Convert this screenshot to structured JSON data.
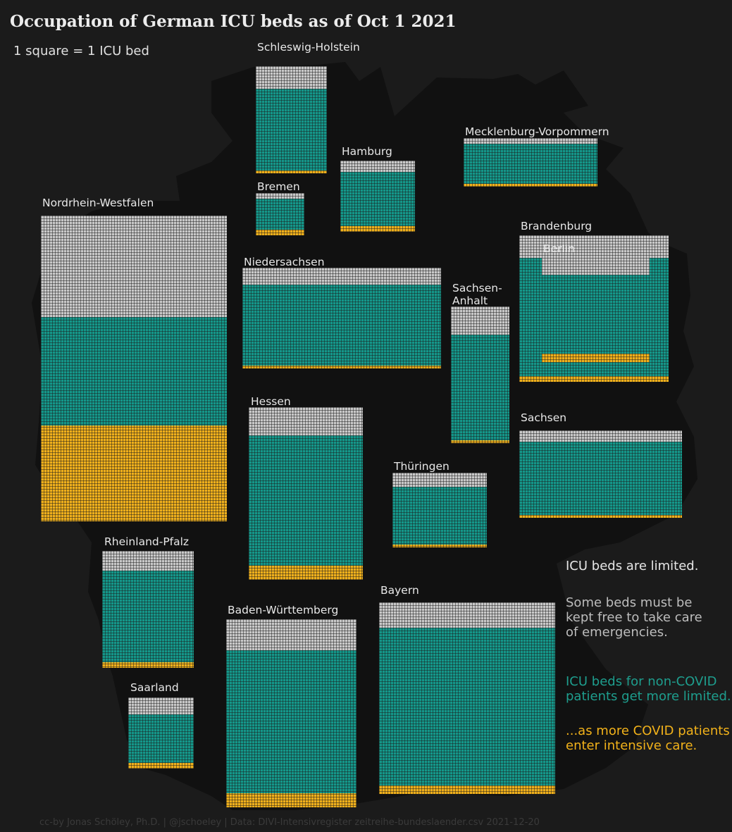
{
  "title": "Occupation of German ICU beds as of Oct  1 2021",
  "subtitle": "1 square = 1 ICU bed",
  "caption": "cc-by Jonas Schöley, Ph.D. | @jschoeley | Data: DIVI-Intensivregister zeitreihe-bundeslaender.csv 2021-12-20",
  "notes": {
    "limited": "ICU beds are limited.",
    "reserve": [
      "Some beds must be",
      "kept free to take care",
      "of emergencies."
    ],
    "noncovid": [
      "ICU beds for non-COVID",
      "patients get more limited.."
    ],
    "covid": [
      "...as more COVID patients",
      "enter intensive care."
    ]
  },
  "colors": {
    "background": "#1b1b1b",
    "map": "#111111",
    "free": "#c9c9c9",
    "non_covid": "#14978a",
    "covid": "#f0b01c",
    "cell_border": "#1b1b1b"
  },
  "chart_data": {
    "type": "waffle",
    "unit": "1 square = 1 ICU bed",
    "categories": [
      "free",
      "non-COVID",
      "COVID"
    ],
    "states": [
      {
        "name": "Schleswig-Holstein",
        "free": 270,
        "non_covid": 976,
        "covid": 40
      },
      {
        "name": "Hamburg",
        "free": 190,
        "non_covid": 838,
        "covid": 65
      },
      {
        "name": "Bremen",
        "free": 45,
        "non_covid": 191,
        "covid": 38
      },
      {
        "name": "Mecklenburg-Vorpommern",
        "free": 100,
        "non_covid": 707,
        "covid": 48
      },
      {
        "name": "Nordrhein-Westfalen",
        "free": 3700,
        "non_covid": 3900,
        "covid": 3400
      },
      {
        "name": "Niedersachsen",
        "free": 770,
        "non_covid": 3860,
        "covid": 150
      },
      {
        "name": "Brandenburg",
        "free": 130,
        "non_covid": 716,
        "covid": 35
      },
      {
        "name": "Berlin",
        "free": 310,
        "non_covid": 1500,
        "covid": 182
      },
      {
        "name": "Sachsen-Anhalt",
        "free": 270,
        "non_covid": 970,
        "covid": 30
      },
      {
        "name": "Hessen",
        "free": 480,
        "non_covid": 2250,
        "covid": 250
      },
      {
        "name": "Thüringen",
        "free": 260,
        "non_covid": 970,
        "covid": 40
      },
      {
        "name": "Sachsen",
        "free": 300,
        "non_covid": 1780,
        "covid": 45
      },
      {
        "name": "Rheinland-Pfalz",
        "free": 320,
        "non_covid": 1370,
        "covid": 90
      },
      {
        "name": "Saarland",
        "free": 145,
        "non_covid": 400,
        "covid": 35
      },
      {
        "name": "Baden-Württemberg",
        "free": 630,
        "non_covid": 3000,
        "covid": 300
      },
      {
        "name": "Bayern",
        "free": 980,
        "non_covid": 6000,
        "covid": 350
      }
    ]
  }
}
